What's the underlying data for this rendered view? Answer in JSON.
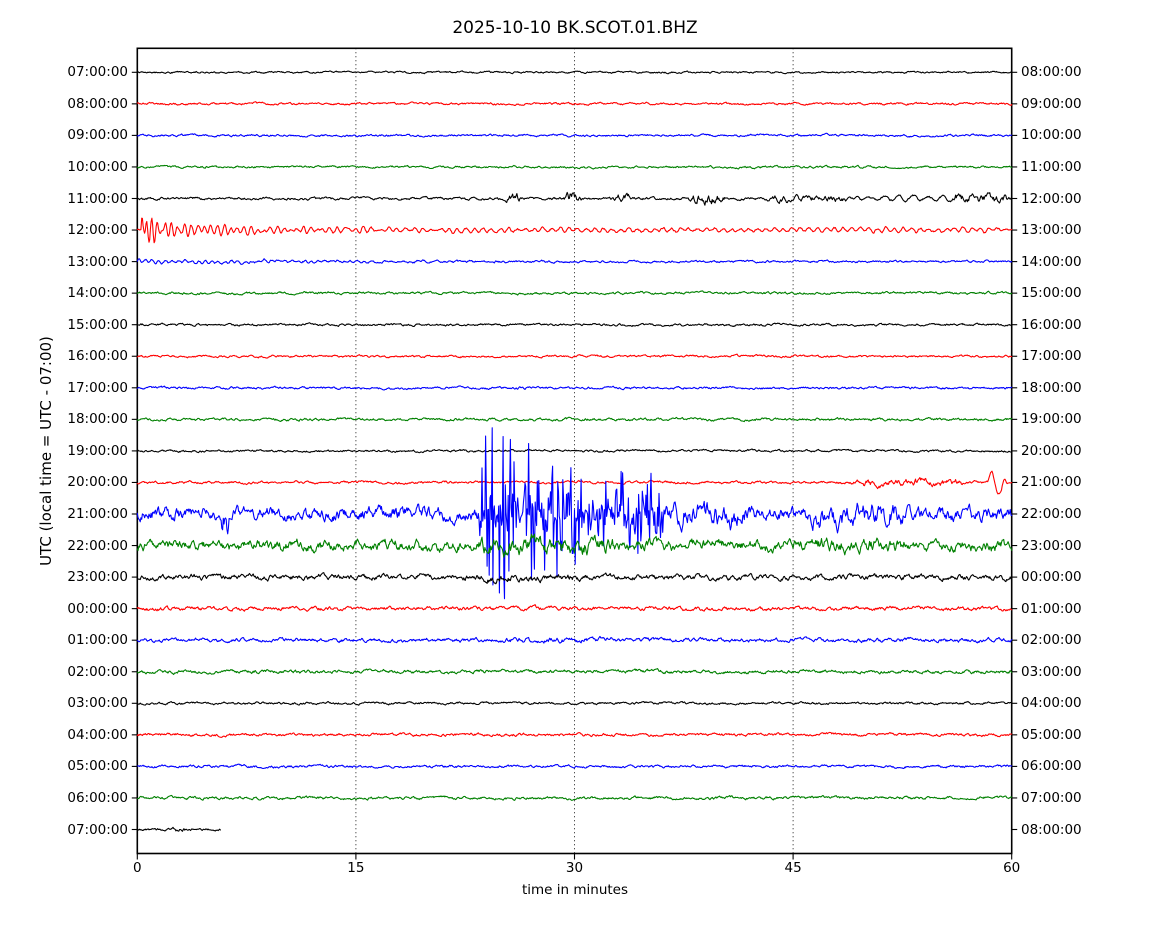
{
  "figure": {
    "background": "#ffffff",
    "frame_color": "#000000",
    "grid_style": "dotted-vertical"
  },
  "title": "2025-10-10 BK.SCOT.01.BHZ",
  "axes": {
    "xlabel": "time in minutes",
    "ylabel": "UTC (local time = UTC - 07:00)",
    "xlim": [
      0,
      60
    ],
    "xticks": [
      0,
      15,
      30,
      45,
      60
    ]
  },
  "chart_data": {
    "type": "line",
    "title": "2025-10-10 BK.SCOT.01.BHZ",
    "xlabel": "time in minutes",
    "ylabel": "UTC (local time = UTC - 07:00)",
    "xlim": [
      0,
      60
    ],
    "xticks": [
      0,
      15,
      30,
      45,
      60
    ],
    "grid": "vertical dotted at 15, 30, 45",
    "legend": "none",
    "minutes_per_row": 60,
    "trace_color_cycle": [
      "#000000",
      "#ff0000",
      "#0000ff",
      "#008000"
    ],
    "amp_units": "px",
    "rows": [
      {
        "left": "07:00:00",
        "right": "08:00:00",
        "color": "#000000",
        "base": 0.9,
        "events": []
      },
      {
        "left": "08:00:00",
        "right": "09:00:00",
        "color": "#ff0000",
        "base": 1.1,
        "events": []
      },
      {
        "left": "09:00:00",
        "right": "10:00:00",
        "color": "#0000ff",
        "base": 1.1,
        "events": []
      },
      {
        "left": "10:00:00",
        "right": "11:00:00",
        "color": "#008000",
        "base": 1.1,
        "events": []
      },
      {
        "left": "11:00:00",
        "right": "12:00:00",
        "color": "#000000",
        "base": 1.3,
        "events": [
          {
            "start": 25.0,
            "end": 26.4,
            "amp": 3.0
          },
          {
            "start": 29.2,
            "end": 30.6,
            "amp": 5.0
          },
          {
            "start": 32.5,
            "end": 34.0,
            "amp": 2.5
          },
          {
            "start": 37.6,
            "end": 40.6,
            "amp": 3.5
          },
          {
            "start": 43.0,
            "end": 49.0,
            "amp": 2.0
          },
          {
            "type": "osc",
            "start": 49.0,
            "end": 60.0,
            "amp": 2.5,
            "freq": 1.0
          },
          {
            "start": 55.5,
            "end": 60.0,
            "amp": 3.0
          }
        ]
      },
      {
        "left": "12:00:00",
        "right": "13:00:00",
        "color": "#ff0000",
        "base": 1.2,
        "events": [
          {
            "type": "oscdecay",
            "start": 0.25,
            "amp": 19.0,
            "tau": 1.3,
            "freq": 3.0
          },
          {
            "type": "oscdecay",
            "start": 0.4,
            "amp": 10.0,
            "tau": 7.5,
            "freq": 2.2
          },
          {
            "type": "osc",
            "start": 3.0,
            "end": 60.0,
            "amp": 2.3,
            "freq": 1.7
          }
        ]
      },
      {
        "left": "13:00:00",
        "right": "14:00:00",
        "color": "#0000ff",
        "base": 1.1,
        "events": [
          {
            "type": "oscdecay",
            "start": 0.0,
            "amp": 2.3,
            "tau": 14.0,
            "freq": 2.2
          }
        ]
      },
      {
        "left": "14:00:00",
        "right": "15:00:00",
        "color": "#008000",
        "base": 1.2,
        "events": []
      },
      {
        "left": "15:00:00",
        "right": "16:00:00",
        "color": "#000000",
        "base": 1.1,
        "events": []
      },
      {
        "left": "16:00:00",
        "right": "17:00:00",
        "color": "#ff0000",
        "base": 1.1,
        "events": []
      },
      {
        "left": "17:00:00",
        "right": "18:00:00",
        "color": "#0000ff",
        "base": 1.2,
        "events": []
      },
      {
        "left": "18:00:00",
        "right": "19:00:00",
        "color": "#008000",
        "base": 1.3,
        "events": []
      },
      {
        "left": "19:00:00",
        "right": "20:00:00",
        "color": "#000000",
        "base": 1.1,
        "events": []
      },
      {
        "left": "20:00:00",
        "right": "21:00:00",
        "color": "#ff0000",
        "base": 1.3,
        "events": [
          {
            "start": 48.8,
            "end": 57.0,
            "amp": 2.2
          },
          {
            "type": "osc",
            "start": 58.3,
            "end": 59.7,
            "amp": 15.0,
            "freq": 0.9
          }
        ]
      },
      {
        "left": "21:00:00",
        "right": "22:00:00",
        "color": "#0000ff",
        "base": 6.5,
        "events": [
          {
            "start": 5.7,
            "end": 6.3,
            "amp": 16.0
          },
          {
            "start": 23.0,
            "end": 31.0,
            "amp": 62.0,
            "spiky": true
          },
          {
            "start": 30.5,
            "end": 36.5,
            "amp": 30.0,
            "spiky": true
          },
          {
            "start": 36.0,
            "end": 42.0,
            "amp": 4.5
          },
          {
            "start": 46.0,
            "end": 53.0,
            "amp": 4.0
          }
        ]
      },
      {
        "left": "22:00:00",
        "right": "23:00:00",
        "color": "#008000",
        "base": 5.2,
        "events": [
          {
            "start": 23.0,
            "end": 33.0,
            "amp": 3.0
          },
          {
            "start": 45.0,
            "end": 53.0,
            "amp": 1.5
          }
        ]
      },
      {
        "left": "23:00:00",
        "right": "00:00:00",
        "color": "#000000",
        "base": 2.6,
        "events": [
          {
            "start": 23.0,
            "end": 31.0,
            "amp": 1.0
          }
        ]
      },
      {
        "left": "00:00:00",
        "right": "01:00:00",
        "color": "#ff0000",
        "base": 1.9,
        "events": []
      },
      {
        "left": "01:00:00",
        "right": "02:00:00",
        "color": "#0000ff",
        "base": 1.9,
        "events": [
          {
            "start": 25.0,
            "end": 33.0,
            "amp": 0.8
          }
        ]
      },
      {
        "left": "02:00:00",
        "right": "03:00:00",
        "color": "#008000",
        "base": 1.7,
        "events": []
      },
      {
        "left": "03:00:00",
        "right": "04:00:00",
        "color": "#000000",
        "base": 1.2,
        "events": []
      },
      {
        "left": "04:00:00",
        "right": "05:00:00",
        "color": "#ff0000",
        "base": 1.4,
        "events": []
      },
      {
        "left": "05:00:00",
        "right": "06:00:00",
        "color": "#0000ff",
        "base": 1.3,
        "events": []
      },
      {
        "left": "06:00:00",
        "right": "07:00:00",
        "color": "#008000",
        "base": 1.4,
        "events": []
      },
      {
        "left": "07:00:00",
        "right": "08:00:00",
        "color": "#000000",
        "base": 1.2,
        "extent": 5.7,
        "events": [
          {
            "start": 2.2,
            "end": 3.4,
            "amp": 1.2
          }
        ]
      }
    ]
  }
}
